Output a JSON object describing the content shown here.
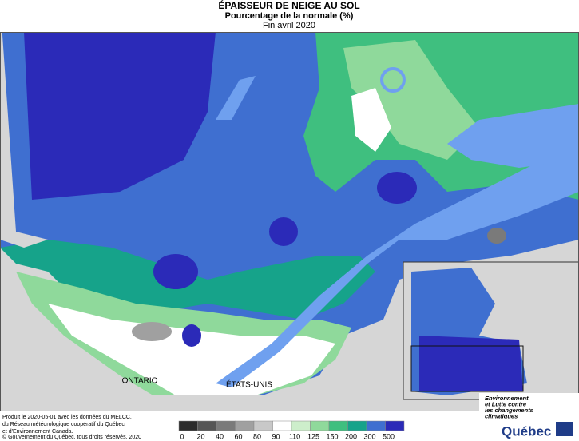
{
  "header": {
    "title": "ÉPAISSEUR DE NEIGE AU SOL",
    "subtitle": "Pourcentage de la normale (%)",
    "date": "Fin avril 2020"
  },
  "map_labels": {
    "ontario": "ONTARIO",
    "usa": "ÉTATS-UNIS"
  },
  "legend": {
    "ticks": [
      0,
      20,
      40,
      60,
      80,
      90,
      110,
      125,
      150,
      200,
      300,
      500
    ],
    "colors": [
      "#2b2b2b",
      "#555555",
      "#7a7a7a",
      "#a0a0a0",
      "#c8c8c8",
      "#ffffff",
      "#cdeecb",
      "#8fd99b",
      "#3fbf7f",
      "#16a38a",
      "#3f6fd0",
      "#2b2ab8"
    ]
  },
  "credits": [
    "Produit le 2020-05-01 avec les données du MELCC,",
    "du Réseau météorologique coopératif du Québec",
    "et d'Environnement Canada.",
    "© Gouvernement du Québec, tous droits réservés, 2020"
  ],
  "logo": {
    "lines": [
      "Environnement",
      "et Lutte contre",
      "les changements",
      "climatiques"
    ],
    "name": "Québec"
  }
}
